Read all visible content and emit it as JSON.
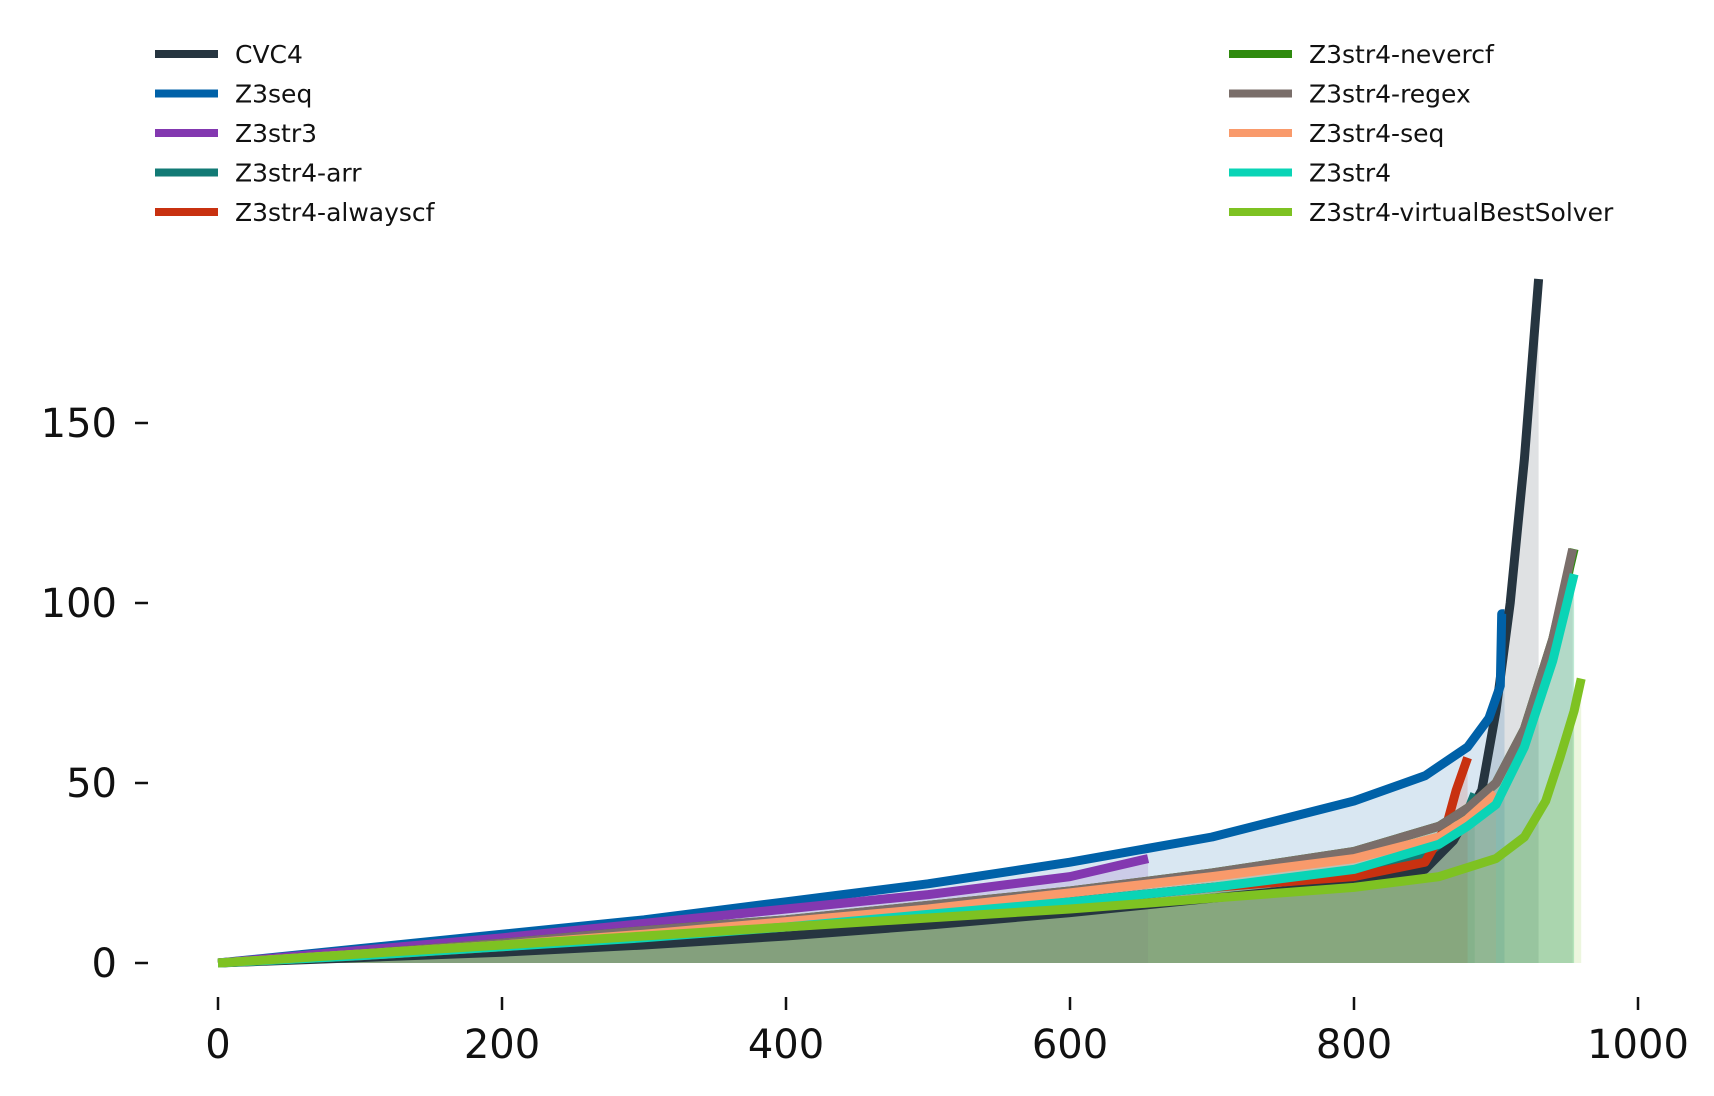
{
  "chart_data": {
    "type": "line",
    "title": "",
    "xlabel": "",
    "ylabel": "",
    "xlim": [
      -30,
      1010
    ],
    "ylim": [
      -8,
      190
    ],
    "xticks": [
      0,
      200,
      400,
      600,
      800,
      1000
    ],
    "yticks": [
      0,
      50,
      100,
      150
    ],
    "grid": false,
    "area_fill": true,
    "legend": "top, two columns",
    "series": [
      {
        "name": "CVC4",
        "color": "#263540",
        "x": [
          0,
          100,
          200,
          300,
          400,
          500,
          600,
          700,
          800,
          850,
          870,
          890,
          900,
          910,
          920,
          930
        ],
        "y": [
          0,
          1.5,
          3,
          5,
          7.5,
          10.5,
          14,
          18,
          22,
          26,
          34,
          48,
          70,
          100,
          140,
          190
        ]
      },
      {
        "name": "Z3seq",
        "color": "#0061a8",
        "x": [
          0,
          100,
          200,
          300,
          400,
          500,
          600,
          700,
          800,
          850,
          880,
          895,
          903,
          904,
          906
        ],
        "y": [
          0,
          4,
          8,
          12,
          17,
          22,
          28,
          35,
          45,
          52,
          60,
          68,
          77,
          97,
          97
        ]
      },
      {
        "name": "Z3str3",
        "color": "#8338b0",
        "x": [
          0,
          100,
          200,
          300,
          400,
          500,
          600,
          655
        ],
        "y": [
          0,
          3.5,
          7,
          11,
          15,
          19,
          24,
          29
        ]
      },
      {
        "name": "Z3str4-arr",
        "color": "#127a75",
        "x": [
          0,
          100,
          200,
          300,
          400,
          500,
          600,
          700,
          800,
          850,
          870,
          880,
          885
        ],
        "y": [
          0,
          2,
          4.5,
          7.5,
          10.5,
          14,
          17,
          21,
          25,
          30,
          36,
          42,
          47
        ]
      },
      {
        "name": "Z3str4-alwayscf",
        "color": "#c83110",
        "x": [
          0,
          100,
          200,
          300,
          400,
          500,
          600,
          700,
          800,
          850,
          865,
          872,
          880
        ],
        "y": [
          0,
          2,
          4.5,
          7.5,
          10.5,
          14,
          17,
          21,
          24,
          28,
          38,
          48,
          57
        ]
      },
      {
        "name": "Z3str4-nevercf",
        "color": "#2f8a0e",
        "x": [
          0,
          100,
          200,
          300,
          400,
          500,
          600,
          700,
          800,
          860,
          880,
          900,
          920,
          940,
          955
        ],
        "y": [
          0,
          2.5,
          5.5,
          9,
          12,
          16,
          20,
          25,
          31,
          38,
          43,
          50,
          65,
          90,
          115
        ]
      },
      {
        "name": "Z3str4-regex",
        "color": "#7a6e6a",
        "x": [
          0,
          100,
          200,
          300,
          400,
          500,
          600,
          700,
          800,
          860,
          880,
          900,
          920,
          940,
          954
        ],
        "y": [
          0,
          2.5,
          5.5,
          9,
          12,
          16,
          20,
          25,
          31,
          38,
          43,
          50,
          65,
          90,
          115
        ]
      },
      {
        "name": "Z3str4-seq",
        "color": "#f99a6b",
        "x": [
          0,
          100,
          200,
          300,
          400,
          500,
          600,
          700,
          800,
          860,
          880,
          900
        ],
        "y": [
          0,
          2.5,
          5,
          8,
          11.5,
          15,
          19.5,
          24,
          29,
          35,
          40,
          47
        ]
      },
      {
        "name": "Z3str4",
        "color": "#0ad4b6",
        "x": [
          0,
          100,
          200,
          300,
          400,
          500,
          600,
          700,
          800,
          860,
          880,
          900,
          920,
          940,
          955
        ],
        "y": [
          0,
          2,
          4.5,
          7,
          10,
          13.5,
          17,
          21,
          26,
          33,
          38,
          44,
          60,
          84,
          108
        ]
      },
      {
        "name": "Z3str4-virtualBestSolver",
        "color": "#7ec222",
        "x": [
          0,
          100,
          200,
          300,
          400,
          500,
          600,
          700,
          800,
          860,
          900,
          920,
          935,
          945,
          955,
          960
        ],
        "y": [
          0,
          2.5,
          5,
          7.5,
          10,
          12.5,
          15,
          18,
          21,
          24,
          29,
          35,
          45,
          57,
          70,
          79
        ]
      }
    ]
  }
}
